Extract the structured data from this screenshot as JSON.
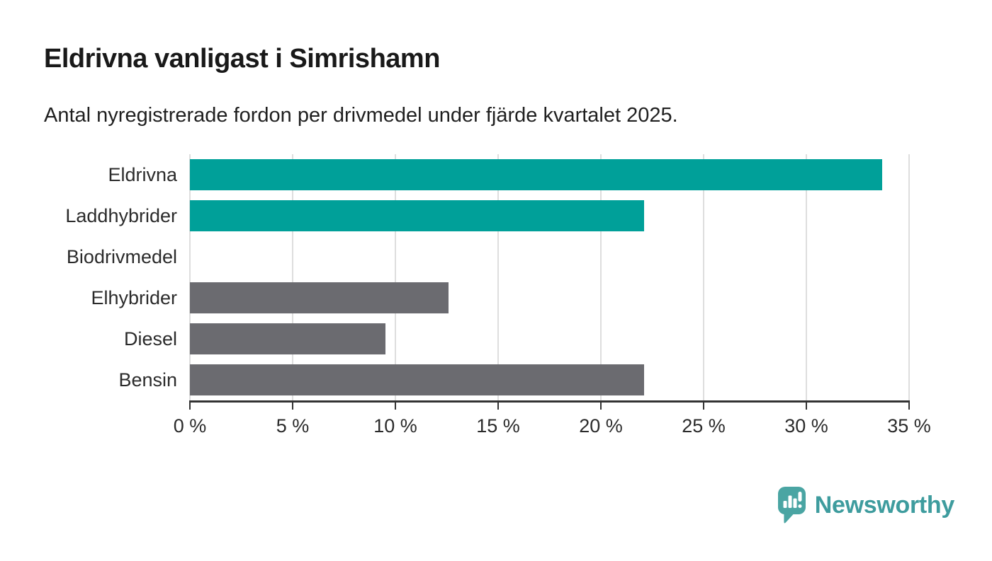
{
  "header": {
    "title": "Eldrivna vanligast i Simrishamn",
    "subtitle": "Antal nyregistrerade fordon per drivmedel under fjärde kvartalet 2025."
  },
  "chart_data": {
    "type": "bar",
    "orientation": "horizontal",
    "title": "Eldrivna vanligast i Simrishamn",
    "subtitle": "Antal nyregistrerade fordon per drivmedel under fjärde kvartalet 2025.",
    "categories": [
      "Eldrivna",
      "Laddhybrider",
      "Biodrivmedel",
      "Elhybrider",
      "Diesel",
      "Bensin"
    ],
    "values": [
      33.7,
      22.1,
      0,
      12.6,
      9.5,
      22.1
    ],
    "unit": "%",
    "bar_colors": [
      "#00a099",
      "#00a099",
      "#6b6b70",
      "#6b6b70",
      "#6b6b70",
      "#6b6b70"
    ],
    "highlight_color": "#00a099",
    "default_color": "#6b6b70",
    "xlabel": "",
    "ylabel": "",
    "xlim": [
      0,
      35
    ],
    "x_ticks": [
      0,
      5,
      10,
      15,
      20,
      25,
      30,
      35
    ],
    "x_tick_labels": [
      "0 %",
      "5 %",
      "10 %",
      "15 %",
      "20 %",
      "25 %",
      "30 %",
      "35 %"
    ],
    "grid": true,
    "gridline_color": "#dedede",
    "axis_color": "#333333",
    "legend_position": "none"
  },
  "footer": {
    "brand": "Newsworthy",
    "brand_color": "#3e9c9e",
    "logo_icon": "newsworthy-speech-bubble-chart-icon",
    "logo_icon_color": "#4aa5a3"
  }
}
